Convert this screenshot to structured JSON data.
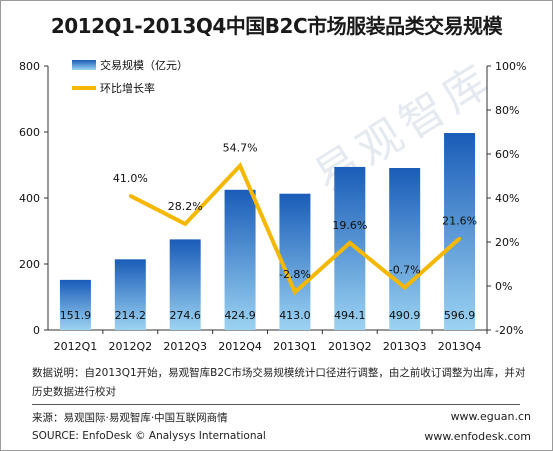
{
  "title": "2012Q1-2013Q4中国B2C市场服装品类交易规模",
  "watermark": "易观智库",
  "chart_data": {
    "type": "bar",
    "categories": [
      "2012Q1",
      "2012Q2",
      "2012Q3",
      "2012Q4",
      "2013Q1",
      "2013Q2",
      "2013Q3",
      "2013Q4"
    ],
    "series": [
      {
        "name": "交易规模（亿元）",
        "type": "bar",
        "axis": "left",
        "values": [
          151.9,
          214.2,
          274.6,
          424.9,
          413.0,
          494.1,
          490.9,
          596.9
        ],
        "labels": [
          "151.9",
          "214.2",
          "274.6",
          "424.9",
          "413.0",
          "494.1",
          "490.9",
          "596.9"
        ]
      },
      {
        "name": "环比增长率",
        "type": "line",
        "axis": "right",
        "values": [
          null,
          41.0,
          28.2,
          54.7,
          -2.8,
          19.6,
          -0.7,
          21.6
        ],
        "labels": [
          "",
          "41.0%",
          "28.2%",
          "54.7%",
          "-2.8%",
          "19.6%",
          "-0.7%",
          "21.6%"
        ]
      }
    ],
    "ylim_left": [
      0,
      800
    ],
    "yticks_left": [
      "0",
      "200",
      "400",
      "600",
      "800"
    ],
    "ylim_right": [
      -20,
      100
    ],
    "yticks_right": [
      "-20%",
      "0%",
      "20%",
      "40%",
      "60%",
      "80%",
      "100%"
    ],
    "legend_position": "top-left",
    "grid": false,
    "colors": {
      "bar_top": "#1a5cb8",
      "bar_bottom": "#9cd3f2",
      "line": "#f5b800"
    }
  },
  "footnote": "数据说明：自2013Q1开始，易观智库B2C市场交易规模统计口径进行调整，由之前收订调整为出库，并对历史数据进行校对",
  "source_cn": "来源：易观国际·易观智库·中国互联网商情",
  "source_en": "SOURCE: EnfoDesk © Analysys International",
  "website1": "www.eguan.cn",
  "website2": "www.enfodesk.com"
}
